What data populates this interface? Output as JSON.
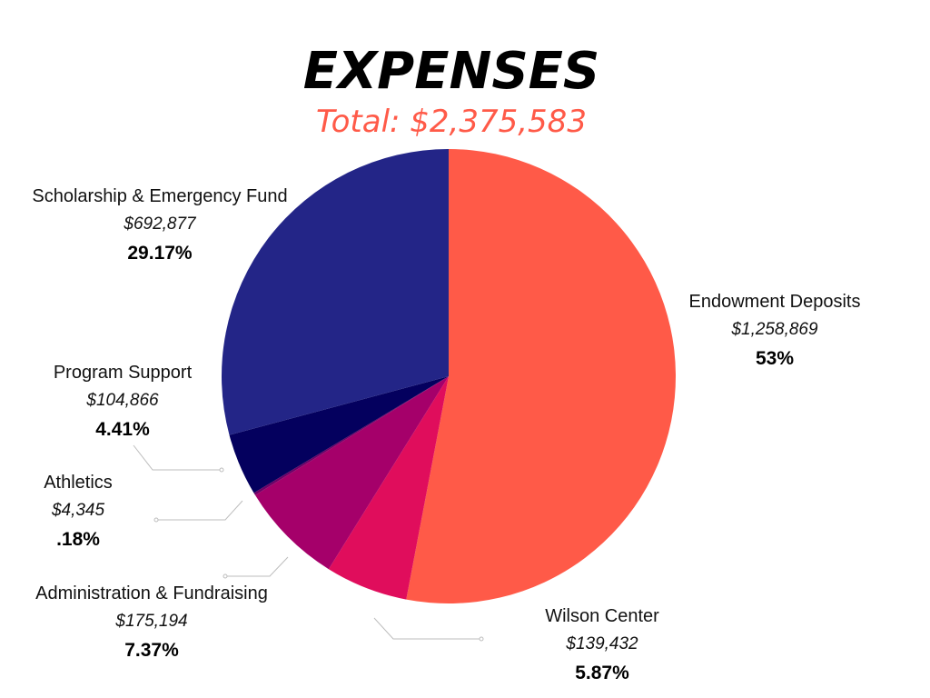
{
  "chart_data": {
    "type": "pie",
    "title": "EXPENSES",
    "subtitle": "Total: $2,375,583",
    "slices": [
      {
        "name": "Endowment Deposits",
        "amount_label": "$1,258,869",
        "pct_label": "53%",
        "value": 1258869,
        "color": "#FF5A48"
      },
      {
        "name": "Wilson Center",
        "amount_label": "$139,432",
        "pct_label": "5.87%",
        "value": 139432,
        "color": "#E00D5C"
      },
      {
        "name": "Administration & Fundraising",
        "amount_label": "$175,194",
        "pct_label": "7.37%",
        "value": 175194,
        "color": "#A5006A"
      },
      {
        "name": "Athletics",
        "amount_label": "$4,345",
        "pct_label": ".18%",
        "value": 4345,
        "color": "#6E0066"
      },
      {
        "name": "Program Support",
        "amount_label": "$104,866",
        "pct_label": "4.41%",
        "value": 104866,
        "color": "#04005E"
      },
      {
        "name": "Scholarship & Emergency Fund",
        "amount_label": "$692,877",
        "pct_label": "29.17%",
        "value": 692877,
        "color": "#232587"
      }
    ],
    "title_color": "#000000",
    "subtitle_color": "#FF5A48",
    "leader_color": "#BDBDBD"
  }
}
